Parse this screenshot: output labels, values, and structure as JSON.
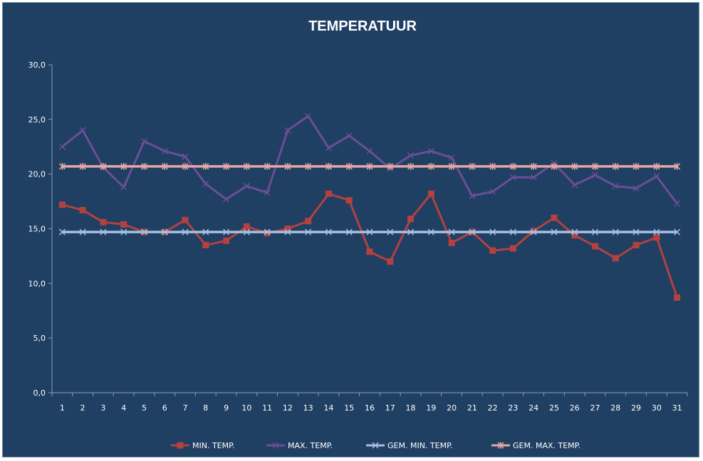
{
  "chart_data": {
    "type": "line",
    "title": "TEMPERATUUR",
    "xlabel": "",
    "ylabel": "",
    "ylim": [
      0,
      30
    ],
    "y_ticks": [
      "0,0",
      "5,0",
      "10,0",
      "15,0",
      "20,0",
      "25,0",
      "30,0"
    ],
    "y_tick_values": [
      0,
      5,
      10,
      15,
      20,
      25,
      30
    ],
    "categories": [
      "1",
      "2",
      "3",
      "4",
      "5",
      "6",
      "7",
      "8",
      "9",
      "10",
      "11",
      "12",
      "13",
      "14",
      "15",
      "16",
      "17",
      "18",
      "19",
      "20",
      "21",
      "22",
      "23",
      "24",
      "25",
      "26",
      "27",
      "28",
      "29",
      "30",
      "31"
    ],
    "grid": false,
    "legend_position": "bottom",
    "series": [
      {
        "name": "MIN. TEMP.",
        "color": "#b3413f",
        "marker": "square",
        "values": [
          17.2,
          16.7,
          15.6,
          15.4,
          14.7,
          14.7,
          15.8,
          13.5,
          13.9,
          15.2,
          14.6,
          15.0,
          15.7,
          18.2,
          17.6,
          12.9,
          12.0,
          15.9,
          18.2,
          13.7,
          14.7,
          13.0,
          13.2,
          14.8,
          16.0,
          14.4,
          13.4,
          12.3,
          13.5,
          14.2,
          8.7
        ]
      },
      {
        "name": "MAX. TEMP.",
        "color": "#6b4e96",
        "marker": "x",
        "values": [
          22.5,
          24.0,
          20.6,
          18.8,
          23.0,
          22.1,
          21.6,
          19.1,
          17.7,
          18.9,
          18.3,
          24.0,
          25.3,
          22.4,
          23.5,
          22.1,
          20.5,
          21.7,
          22.1,
          21.5,
          18.0,
          18.4,
          19.7,
          19.7,
          21.0,
          19.0,
          19.9,
          18.9,
          18.7,
          19.8,
          17.3
        ]
      },
      {
        "name": "GEM. MIN. TEMP.",
        "color": "#a8bfe0",
        "marker": "x",
        "values": [
          14.7,
          14.7,
          14.7,
          14.7,
          14.7,
          14.7,
          14.7,
          14.7,
          14.7,
          14.7,
          14.7,
          14.7,
          14.7,
          14.7,
          14.7,
          14.7,
          14.7,
          14.7,
          14.7,
          14.7,
          14.7,
          14.7,
          14.7,
          14.7,
          14.7,
          14.7,
          14.7,
          14.7,
          14.7,
          14.7,
          14.7
        ]
      },
      {
        "name": "GEM. MAX. TEMP.",
        "color": "#e3a8a4",
        "marker": "star",
        "values": [
          20.7,
          20.7,
          20.7,
          20.7,
          20.7,
          20.7,
          20.7,
          20.7,
          20.7,
          20.7,
          20.7,
          20.7,
          20.7,
          20.7,
          20.7,
          20.7,
          20.7,
          20.7,
          20.7,
          20.7,
          20.7,
          20.7,
          20.7,
          20.7,
          20.7,
          20.7,
          20.7,
          20.7,
          20.7,
          20.7,
          20.7
        ]
      }
    ]
  }
}
